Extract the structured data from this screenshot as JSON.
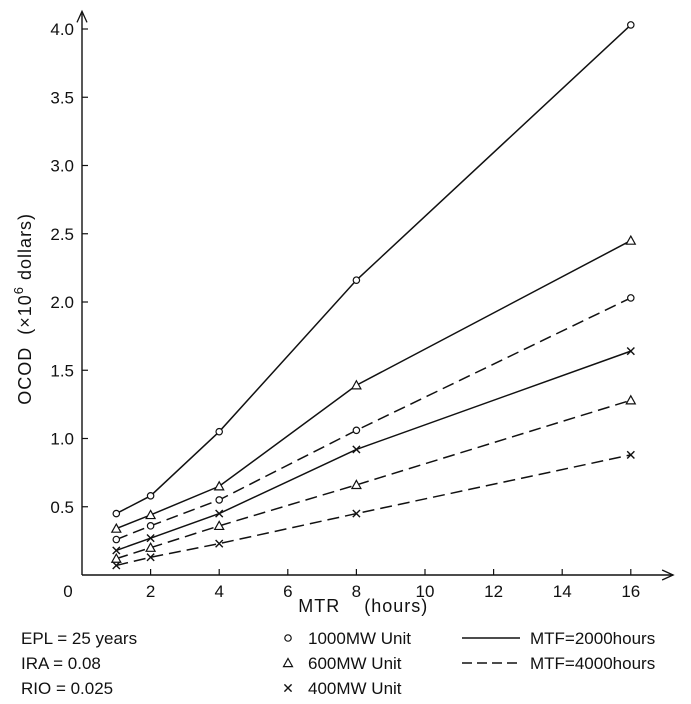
{
  "chart_data": {
    "type": "line",
    "title": "",
    "xlabel": "MTR    (hours)",
    "ylabel_main": "OCOD  (×10",
    "ylabel_exp": "6",
    "ylabel_tail": " dollars)",
    "origin_label": "0",
    "xlim": [
      0,
      17
    ],
    "ylim": [
      0,
      4.1
    ],
    "xticks": [
      "2",
      "4",
      "6",
      "8",
      "10",
      "12",
      "14",
      "16"
    ],
    "yticks": [
      "0.5",
      "1.0",
      "1.5",
      "2.0",
      "2.5",
      "3.0",
      "3.5",
      "4.0"
    ],
    "x": [
      1,
      2,
      4,
      8,
      16
    ],
    "grid": false,
    "series": [
      {
        "unit": "1000MW",
        "mtf": "2000",
        "marker": "circle",
        "dash": "solid",
        "values": [
          0.45,
          0.58,
          1.05,
          2.16,
          4.03
        ]
      },
      {
        "unit": "600MW",
        "mtf": "2000",
        "marker": "triangle",
        "dash": "solid",
        "values": [
          0.34,
          0.44,
          0.65,
          1.39,
          2.45
        ]
      },
      {
        "unit": "1000MW",
        "mtf": "4000",
        "marker": "circle",
        "dash": "dashed",
        "values": [
          0.26,
          0.36,
          0.55,
          1.06,
          2.03
        ]
      },
      {
        "unit": "400MW",
        "mtf": "2000",
        "marker": "x",
        "dash": "solid",
        "values": [
          0.18,
          0.27,
          0.45,
          0.92,
          1.64
        ]
      },
      {
        "unit": "600MW",
        "mtf": "4000",
        "marker": "triangle",
        "dash": "dashed",
        "values": [
          0.12,
          0.2,
          0.36,
          0.66,
          1.28
        ]
      },
      {
        "unit": "400MW",
        "mtf": "4000",
        "marker": "x",
        "dash": "dashed",
        "values": [
          0.07,
          0.13,
          0.23,
          0.45,
          0.88
        ]
      }
    ],
    "legend": {
      "params": [
        "EPL = 25 years",
        "IRA = 0.08",
        "RIO = 0.025"
      ],
      "units": [
        {
          "marker": "circle",
          "label": "1000MW Unit"
        },
        {
          "marker": "triangle",
          "label": "600MW Unit"
        },
        {
          "marker": "x",
          "label": "400MW Unit"
        }
      ],
      "lines": [
        {
          "dash": "solid",
          "label": "MTF=2000hours"
        },
        {
          "dash": "dashed",
          "label": "MTF=4000hours"
        }
      ]
    }
  }
}
